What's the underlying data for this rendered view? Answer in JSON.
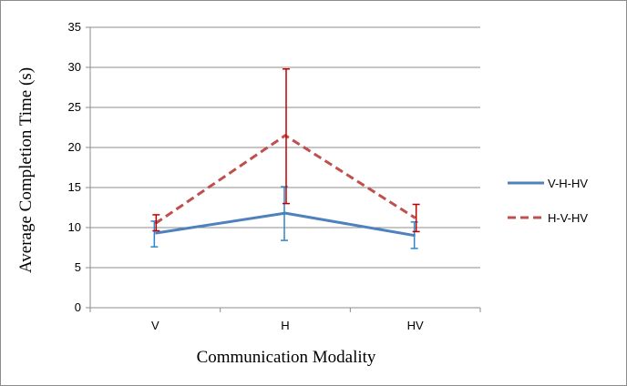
{
  "chart_data": {
    "type": "line",
    "title": "",
    "xlabel": "Communication Modality",
    "ylabel": "Average Completion Time (s)",
    "categories": [
      "V",
      "H",
      "HV"
    ],
    "ylim": [
      0,
      35
    ],
    "yticks": [
      "0",
      "5",
      "10",
      "15",
      "20",
      "25",
      "30",
      "35"
    ],
    "grid": true,
    "legend_position": "right",
    "series": [
      {
        "name": "V-H-HV",
        "values": [
          9.3,
          11.8,
          9.0
        ],
        "error_low": [
          7.6,
          8.4,
          7.4
        ],
        "error_high": [
          10.8,
          15.1,
          10.7
        ],
        "color": "#4f81bd",
        "line_style": "solid",
        "error_color": "#2e86c8"
      },
      {
        "name": "H-V-HV",
        "values": [
          10.5,
          21.5,
          11.2
        ],
        "error_low": [
          9.6,
          13.0,
          9.5
        ],
        "error_high": [
          11.6,
          29.8,
          12.9
        ],
        "color": "#c0504d",
        "line_style": "dashed",
        "error_color": "#c00000"
      }
    ]
  }
}
